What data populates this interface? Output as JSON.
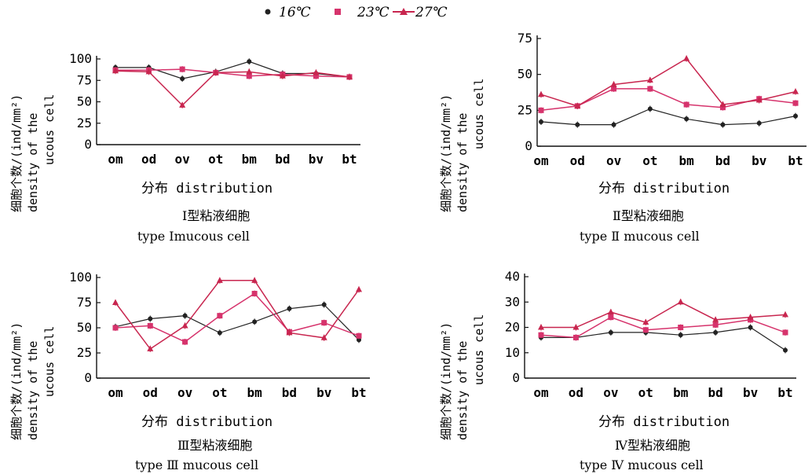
{
  "legend": [
    {
      "label": "16℃",
      "color": "#222222",
      "marker": "circle"
    },
    {
      "label": "23℃",
      "color": "#d6336c",
      "marker": "square"
    },
    {
      "label": "27℃",
      "color": "#c8264f",
      "marker": "triangle"
    }
  ],
  "chart_data": [
    {
      "type": "line",
      "title": "Ⅰ型粘液细胞",
      "subtitle": "type Ⅰmucous cell",
      "xlabel": "分布  distribution",
      "ylabel_lines": [
        "细胞个数/(ind/mm²)",
        "density of the",
        "ucous cell"
      ],
      "categories": [
        "om",
        "od",
        "ov",
        "ot",
        "bm",
        "bd",
        "bv",
        "bt"
      ],
      "ylim": [
        0,
        100
      ],
      "yticks": [
        0,
        25,
        50,
        75,
        100
      ],
      "series": [
        {
          "name": "16℃",
          "values": [
            90,
            90,
            77,
            85,
            97,
            83,
            83,
            79
          ]
        },
        {
          "name": "23℃",
          "values": [
            87,
            87,
            88,
            84,
            80,
            82,
            80,
            79
          ]
        },
        {
          "name": "27℃",
          "values": [
            86,
            85,
            46,
            84,
            85,
            80,
            84,
            79
          ]
        }
      ]
    },
    {
      "type": "line",
      "title": "Ⅱ型粘液细胞",
      "subtitle": "type Ⅱ mucous cell",
      "xlabel": "分布  distribution",
      "ylabel_lines": [
        "细胞个数/(ind/mm²)",
        "density of the",
        "ucous cell"
      ],
      "categories": [
        "om",
        "od",
        "ov",
        "ot",
        "bm",
        "bd",
        "bv",
        "bt"
      ],
      "ylim": [
        0,
        75
      ],
      "yticks": [
        0,
        25,
        50,
        75
      ],
      "series": [
        {
          "name": "16℃",
          "values": [
            17,
            15,
            15,
            26,
            19,
            15,
            16,
            21
          ]
        },
        {
          "name": "23℃",
          "values": [
            25,
            28,
            40,
            40,
            29,
            27,
            33,
            30
          ]
        },
        {
          "name": "27℃",
          "values": [
            36,
            28,
            43,
            46,
            61,
            29,
            32,
            38
          ]
        }
      ]
    },
    {
      "type": "line",
      "title": "Ⅲ型粘液细胞",
      "subtitle": "type Ⅲ mucous cell",
      "xlabel": "分布  distribution",
      "ylabel_lines": [
        "细胞个数/(ind/mm²)",
        "density of the",
        "ucous cell"
      ],
      "categories": [
        "om",
        "od",
        "ov",
        "ot",
        "bm",
        "bd",
        "bv",
        "bt"
      ],
      "ylim": [
        0,
        100
      ],
      "yticks": [
        0,
        25,
        50,
        75,
        100
      ],
      "series": [
        {
          "name": "16℃",
          "values": [
            51,
            59,
            62,
            45,
            56,
            69,
            73,
            38
          ]
        },
        {
          "name": "23℃",
          "values": [
            50,
            52,
            36,
            62,
            84,
            46,
            55,
            42
          ]
        },
        {
          "name": "27℃",
          "values": [
            75,
            29,
            52,
            97,
            97,
            45,
            40,
            88
          ]
        }
      ]
    },
    {
      "type": "line",
      "title": "Ⅳ型粘液细胞",
      "subtitle": "type Ⅳ mucous cell",
      "xlabel": "分布  distribution",
      "ylabel_lines": [
        "细胞个数/(ind/mm²)",
        "density of the",
        "ucous cell"
      ],
      "categories": [
        "om",
        "od",
        "ov",
        "ot",
        "bm",
        "bd",
        "bv",
        "bt"
      ],
      "ylim": [
        0,
        40
      ],
      "yticks": [
        0,
        10,
        20,
        30,
        40
      ],
      "series": [
        {
          "name": "16℃",
          "values": [
            16,
            16,
            18,
            18,
            17,
            18,
            20,
            11
          ]
        },
        {
          "name": "23℃",
          "values": [
            17,
            16,
            24,
            19,
            20,
            21,
            23,
            18
          ]
        },
        {
          "name": "27℃",
          "values": [
            20,
            20,
            26,
            22,
            30,
            23,
            24,
            25
          ]
        }
      ]
    }
  ]
}
